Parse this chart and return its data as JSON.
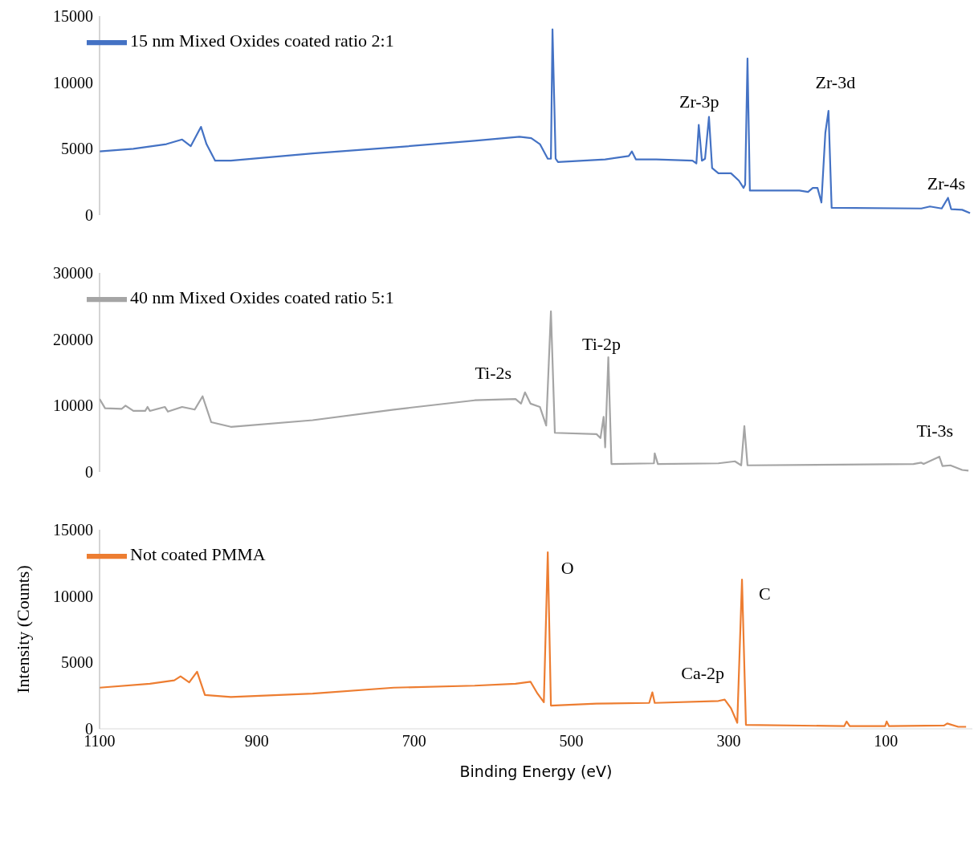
{
  "chart_data": [
    {
      "type": "line",
      "xlim": [
        1100,
        -10
      ],
      "xticks": [
        1100,
        900,
        700,
        500,
        300,
        100
      ],
      "ylim": [
        0,
        15000
      ],
      "yticks": [
        0,
        5000,
        10000,
        15000
      ],
      "tick_labels": "y",
      "grid": false,
      "legend": "top left",
      "marker": "none",
      "line_style": "solid",
      "series": [
        {
          "name": "15 nm Mixed Oxides coated ratio 2:1",
          "color": "#4472c4",
          "x": [
            1100,
            1057,
            1015,
            995,
            984,
            971,
            964,
            953,
            933,
            829,
            726,
            623,
            566,
            551,
            540,
            530,
            526,
            524,
            520,
            517,
            457,
            427,
            423,
            418,
            392,
            346,
            341,
            338,
            334,
            330,
            325,
            321,
            313,
            297,
            287,
            281,
            279,
            276,
            273,
            210,
            199,
            193,
            187,
            182,
            177,
            173,
            169,
            55,
            44,
            29,
            21,
            17,
            3,
            -7
          ],
          "values": [
            4800,
            5000,
            5350,
            5700,
            5200,
            6650,
            5350,
            4100,
            4100,
            4650,
            5100,
            5600,
            5900,
            5800,
            5350,
            4250,
            4250,
            14000,
            4250,
            4000,
            4200,
            4450,
            4800,
            4200,
            4200,
            4100,
            3900,
            6800,
            4100,
            4250,
            7400,
            3550,
            3150,
            3150,
            2600,
            2050,
            2300,
            11800,
            1850,
            1850,
            1750,
            2050,
            2050,
            950,
            6200,
            7850,
            550,
            500,
            650,
            500,
            1300,
            450,
            400,
            150
          ]
        }
      ],
      "annotations": [
        "Zr-3p",
        "Zr-3d",
        "Zr-4s"
      ]
    },
    {
      "type": "line",
      "xlim": [
        1100,
        -10
      ],
      "xticks": [
        1100,
        900,
        700,
        500,
        300,
        100
      ],
      "ylim": [
        0,
        30000
      ],
      "yticks": [
        0,
        10000,
        20000,
        30000
      ],
      "tick_labels": "y",
      "grid": false,
      "legend": "top left",
      "marker": "none",
      "line_style": "solid",
      "series": [
        {
          "name": "40 nm Mixed Oxides coated ratio 5:1",
          "color": "#a5a5a5",
          "x": [
            1100,
            1093,
            1072,
            1067,
            1057,
            1042,
            1039,
            1036,
            1017,
            1013,
            995,
            979,
            969,
            958,
            933,
            829,
            726,
            623,
            571,
            564,
            559,
            552,
            540,
            532,
            526,
            521,
            468,
            463,
            459,
            457,
            453,
            449,
            395,
            394,
            390,
            313,
            292,
            284,
            280,
            276,
            65,
            55,
            52,
            32,
            28,
            18,
            3,
            -5
          ],
          "values": [
            11000,
            9600,
            9500,
            10000,
            9200,
            9200,
            9800,
            9200,
            9800,
            9100,
            9800,
            9400,
            11400,
            7500,
            6800,
            7800,
            9400,
            10800,
            11000,
            10300,
            12000,
            10300,
            9800,
            7000,
            24200,
            5900,
            5700,
            5100,
            8300,
            3700,
            17300,
            1200,
            1300,
            2800,
            1200,
            1300,
            1600,
            1000,
            6900,
            1000,
            1200,
            1400,
            1200,
            2300,
            900,
            1000,
            300,
            200
          ]
        }
      ],
      "annotations": [
        "Ti-2s",
        "Ti-2p",
        "Ti-3s"
      ]
    },
    {
      "type": "line",
      "xlabel": "Binding Energy (eV)",
      "ylabel": "Intensity (Counts)",
      "xlim": [
        1100,
        -10
      ],
      "xticks": [
        1100,
        900,
        700,
        500,
        300,
        100
      ],
      "ylim": [
        0,
        15000
      ],
      "yticks": [
        0,
        5000,
        10000,
        15000
      ],
      "grid": false,
      "legend": "top left",
      "marker": "none",
      "line_style": "solid",
      "series": [
        {
          "name": "Not coated PMMA",
          "color": "#ed7d31",
          "x": [
            1100,
            1036,
            1005,
            997,
            986,
            976,
            966,
            933,
            829,
            726,
            623,
            571,
            552,
            543,
            535,
            530,
            526,
            468,
            401,
            397,
            394,
            313,
            305,
            297,
            289,
            283,
            278,
            153,
            150,
            146,
            101,
            99,
            96,
            26,
            22,
            8,
            -2
          ],
          "values": [
            3100,
            3400,
            3650,
            3950,
            3500,
            4300,
            2550,
            2400,
            2650,
            3100,
            3250,
            3400,
            3550,
            2650,
            2000,
            13300,
            1750,
            1900,
            1950,
            2750,
            1950,
            2100,
            2200,
            1550,
            450,
            11250,
            300,
            200,
            550,
            200,
            200,
            550,
            200,
            250,
            400,
            150,
            150
          ]
        }
      ],
      "annotations": [
        "O",
        "C",
        "Ca-2p"
      ]
    }
  ]
}
